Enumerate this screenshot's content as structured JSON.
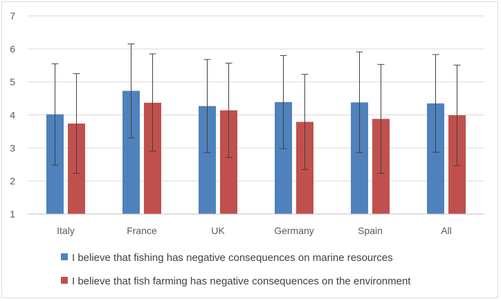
{
  "chart_data": {
    "type": "bar",
    "title": "",
    "xlabel": "",
    "ylabel": "",
    "ylim": [
      1,
      7
    ],
    "yticks": [
      1,
      2,
      3,
      4,
      5,
      6,
      7
    ],
    "grid": true,
    "legend_position": "bottom",
    "categories": [
      "Italy",
      "France",
      "UK",
      "Germany",
      "Spain",
      "All"
    ],
    "series": [
      {
        "name": "I believe that fishing has negative consequences on marine resources",
        "color": "#4f81bd",
        "values": [
          4.02,
          4.73,
          4.27,
          4.39,
          4.38,
          4.35
        ],
        "error_upper": [
          5.55,
          6.15,
          5.68,
          5.8,
          5.91,
          5.83
        ],
        "error_lower": [
          2.48,
          3.3,
          2.86,
          2.98,
          2.86,
          2.87
        ]
      },
      {
        "name": "I believe that fish farming has negative consequences on the environment",
        "color": "#c0504d",
        "values": [
          3.74,
          4.37,
          4.14,
          3.79,
          3.88,
          3.99
        ],
        "error_upper": [
          5.25,
          5.85,
          5.57,
          5.23,
          5.53,
          5.51
        ],
        "error_lower": [
          2.23,
          2.9,
          2.71,
          2.35,
          2.23,
          2.47
        ]
      }
    ]
  }
}
